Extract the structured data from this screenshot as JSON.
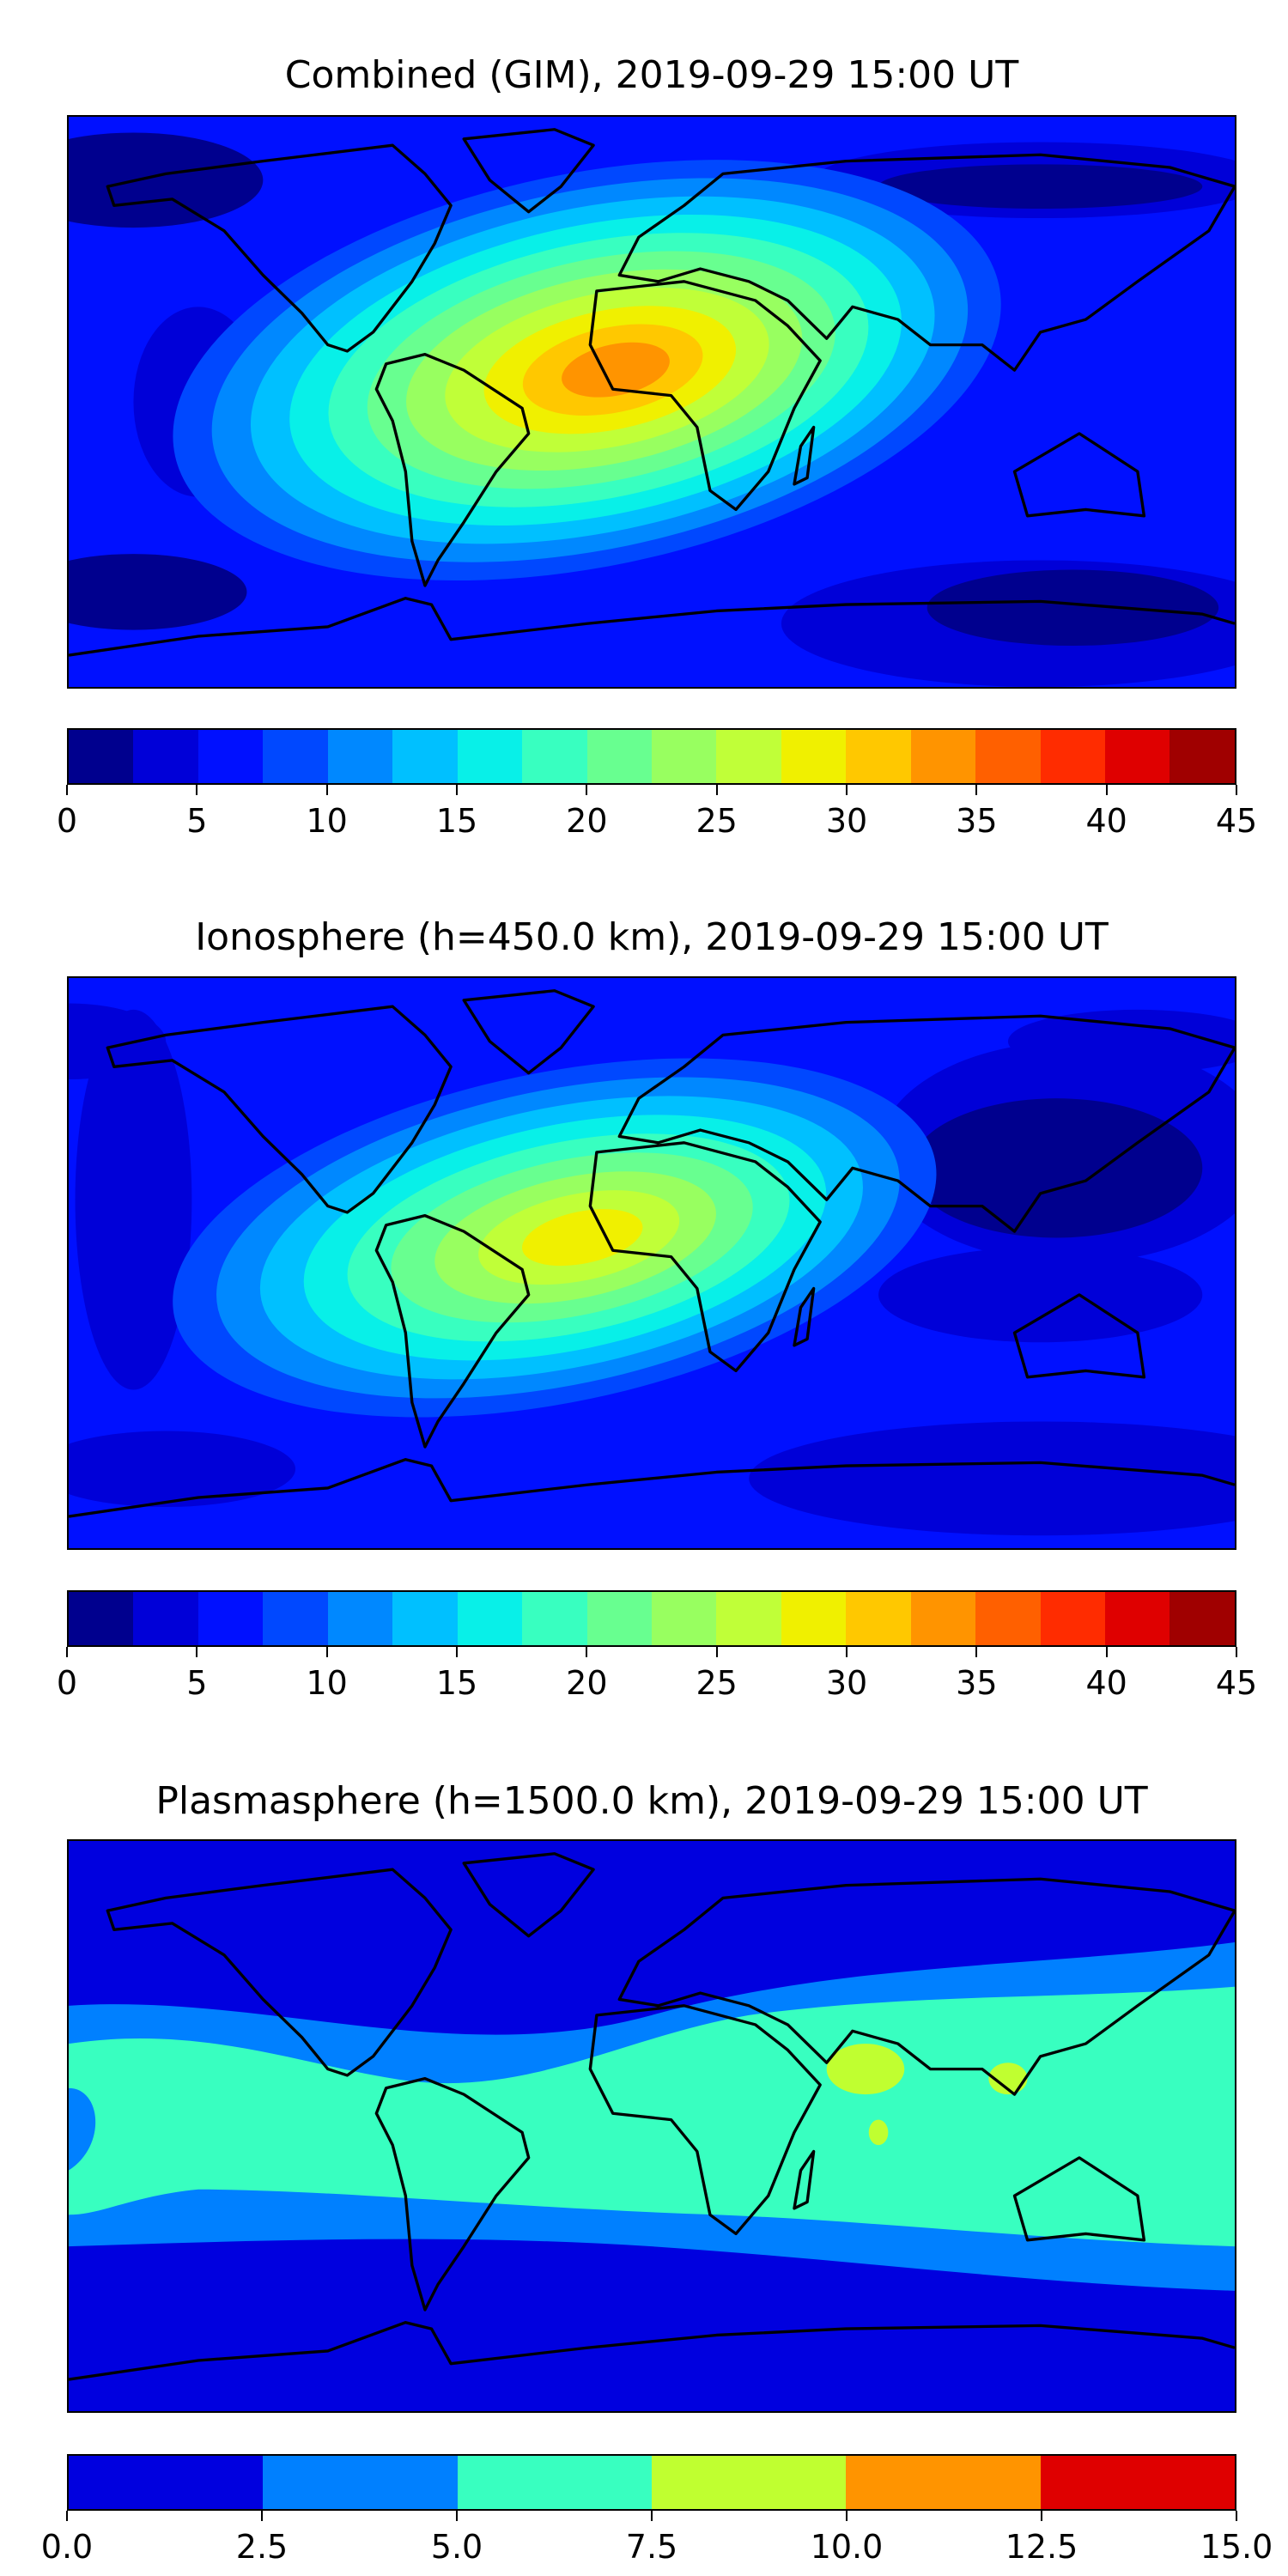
{
  "chart_data": [
    {
      "type": "heatmap",
      "title": "Combined (GIM), 2019-09-29 15:00 UT",
      "colorbar": {
        "ticks": [
          "0",
          "5",
          "10",
          "15",
          "20",
          "25",
          "30",
          "35",
          "40",
          "45"
        ],
        "range": [
          0,
          45
        ],
        "step": 2.5,
        "colors": [
          "#00008e",
          "#0000d8",
          "#0010ff",
          "#0048ff",
          "#0088ff",
          "#00c0ff",
          "#08f0e8",
          "#38ffc0",
          "#68ff90",
          "#98ff60",
          "#c0ff38",
          "#f0f000",
          "#ffc800",
          "#ff9400",
          "#ff6000",
          "#ff2c00",
          "#df0000",
          "#a00000"
        ]
      },
      "peak_level_range": [
        32.5,
        35
      ],
      "peak_region": "equatorial Atlantic / West Africa"
    },
    {
      "type": "heatmap",
      "title": "Ionosphere  (h=450.0 km), 2019-09-29 15:00 UT",
      "colorbar": {
        "ticks": [
          "0",
          "5",
          "10",
          "15",
          "20",
          "25",
          "30",
          "35",
          "40",
          "45"
        ],
        "range": [
          0,
          45
        ],
        "step": 2.5,
        "colors": [
          "#00008e",
          "#0000d8",
          "#0010ff",
          "#0048ff",
          "#0088ff",
          "#00c0ff",
          "#08f0e8",
          "#38ffc0",
          "#68ff90",
          "#98ff60",
          "#c0ff38",
          "#f0f000",
          "#ffc800",
          "#ff9400",
          "#ff6000",
          "#ff2c00",
          "#df0000",
          "#a00000"
        ]
      },
      "peak_level_range": [
        27.5,
        30
      ],
      "peak_region": "South America / central Africa"
    },
    {
      "type": "heatmap",
      "title": "Plasmasphere (h=1500.0 km), 2019-09-29 15:00 UT",
      "colorbar": {
        "ticks": [
          "0.0",
          "2.5",
          "5.0",
          "7.5",
          "10.0",
          "12.5",
          "15.0"
        ],
        "range": [
          0,
          15
        ],
        "step": 2.5,
        "colors": [
          "#0000df",
          "#0080ff",
          "#38ffc0",
          "#c0ff30",
          "#ff9400",
          "#df0000"
        ]
      },
      "peak_level_range": [
        7.5,
        10
      ],
      "peak_region": "Arabian Sea / East Asia"
    }
  ]
}
